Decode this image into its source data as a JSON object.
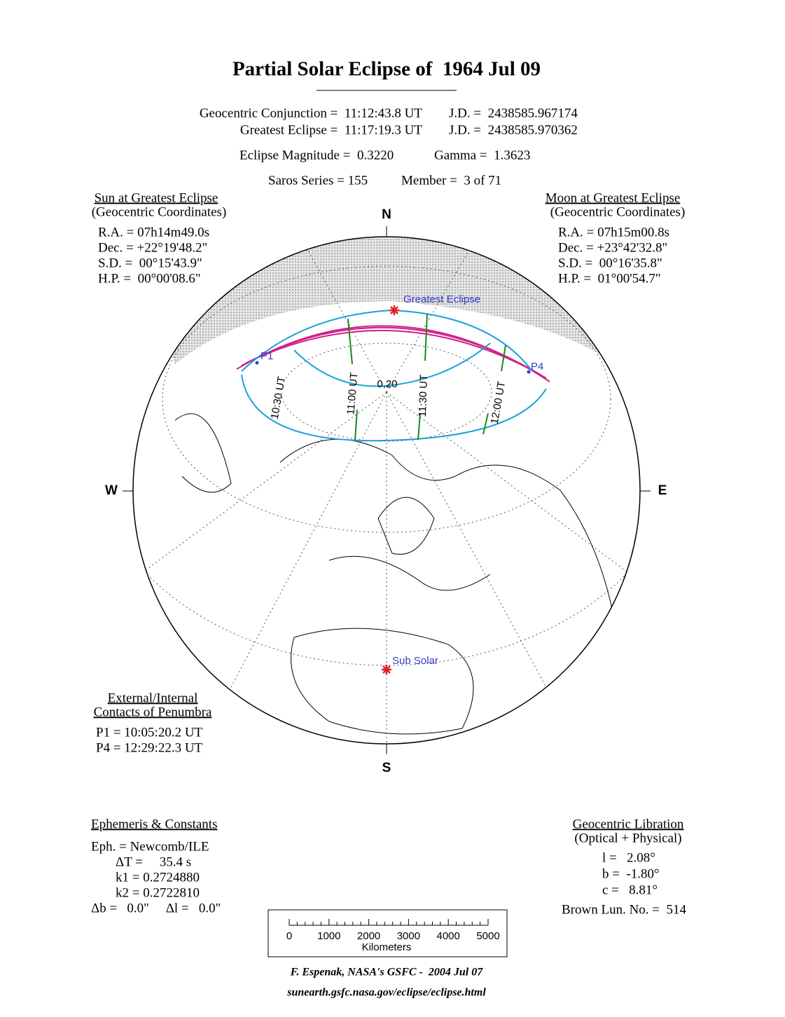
{
  "header": {
    "title": "Partial Solar Eclipse of  1964 Jul 09",
    "conjunction": "Geocentric Conjunction =  11:12:43.8 UT",
    "conjunction_jd": "J.D. =  2438585.967174",
    "greatest": "Greatest Eclipse =  11:17:19.3 UT",
    "greatest_jd": "J.D. =  2438585.970362",
    "magnitude": "Eclipse Magnitude =  0.3220",
    "gamma": "Gamma =  1.3623",
    "saros": "Saros Series = 155",
    "member": "Member =  3 of 71"
  },
  "sun": {
    "heading": "Sun at Greatest Eclipse",
    "subheading": "(Geocentric Coordinates)",
    "lines": [
      "R.A. = 07h14m49.0s",
      "Dec. = +22°19'48.2\"",
      "S.D. =  00°15'43.9\"",
      "H.P. =  00°00'08.6\""
    ]
  },
  "moon": {
    "heading": "Moon at Greatest Eclipse",
    "subheading": "(Geocentric Coordinates)",
    "lines": [
      "R.A. = 07h15m00.8s",
      "Dec. = +23°42'32.8\"",
      "S.D. =  00°16'35.8\"",
      "H.P. =  01°00'54.7\""
    ]
  },
  "map": {
    "north": "N",
    "south": "S",
    "west": "W",
    "east": "E",
    "greatest_label": "Greatest Eclipse",
    "subsolar_label": "Sub Solar",
    "p1": "P1",
    "p4": "P4",
    "magnitude_label": "0.20",
    "times": [
      "10:30 UT",
      "11:00 UT",
      "11:30 UT",
      "12:00 UT"
    ]
  },
  "contacts": {
    "heading1": "External/Internal",
    "heading2": "Contacts of Penumbra",
    "lines": [
      "P1 = 10:05:20.2 UT",
      "P4 = 12:29:22.3 UT"
    ]
  },
  "ephemeris": {
    "heading": "Ephemeris & Constants",
    "lines": [
      "Eph. = Newcomb/ILE",
      "ΔT =     35.4 s",
      "k1 = 0.2724880",
      "k2 = 0.2722810",
      "Δb =   0.0\"     Δl =   0.0\""
    ]
  },
  "libration": {
    "heading": "Geocentric Libration",
    "subheading": "(Optical + Physical)",
    "lines": [
      "l =   2.08°",
      "b =  -1.80°",
      "c =   8.81°"
    ],
    "brown": "Brown Lun. No. =  514"
  },
  "scale": {
    "ticks": [
      "0",
      "1000",
      "2000",
      "3000",
      "4000",
      "5000"
    ],
    "unit": "Kilometers"
  },
  "footer": {
    "credit": "F. Espenak, NASA's GSFC -  2004 Jul 07",
    "url": "sunearth.gsfc.nasa.gov/eclipse/eclipse.html"
  }
}
